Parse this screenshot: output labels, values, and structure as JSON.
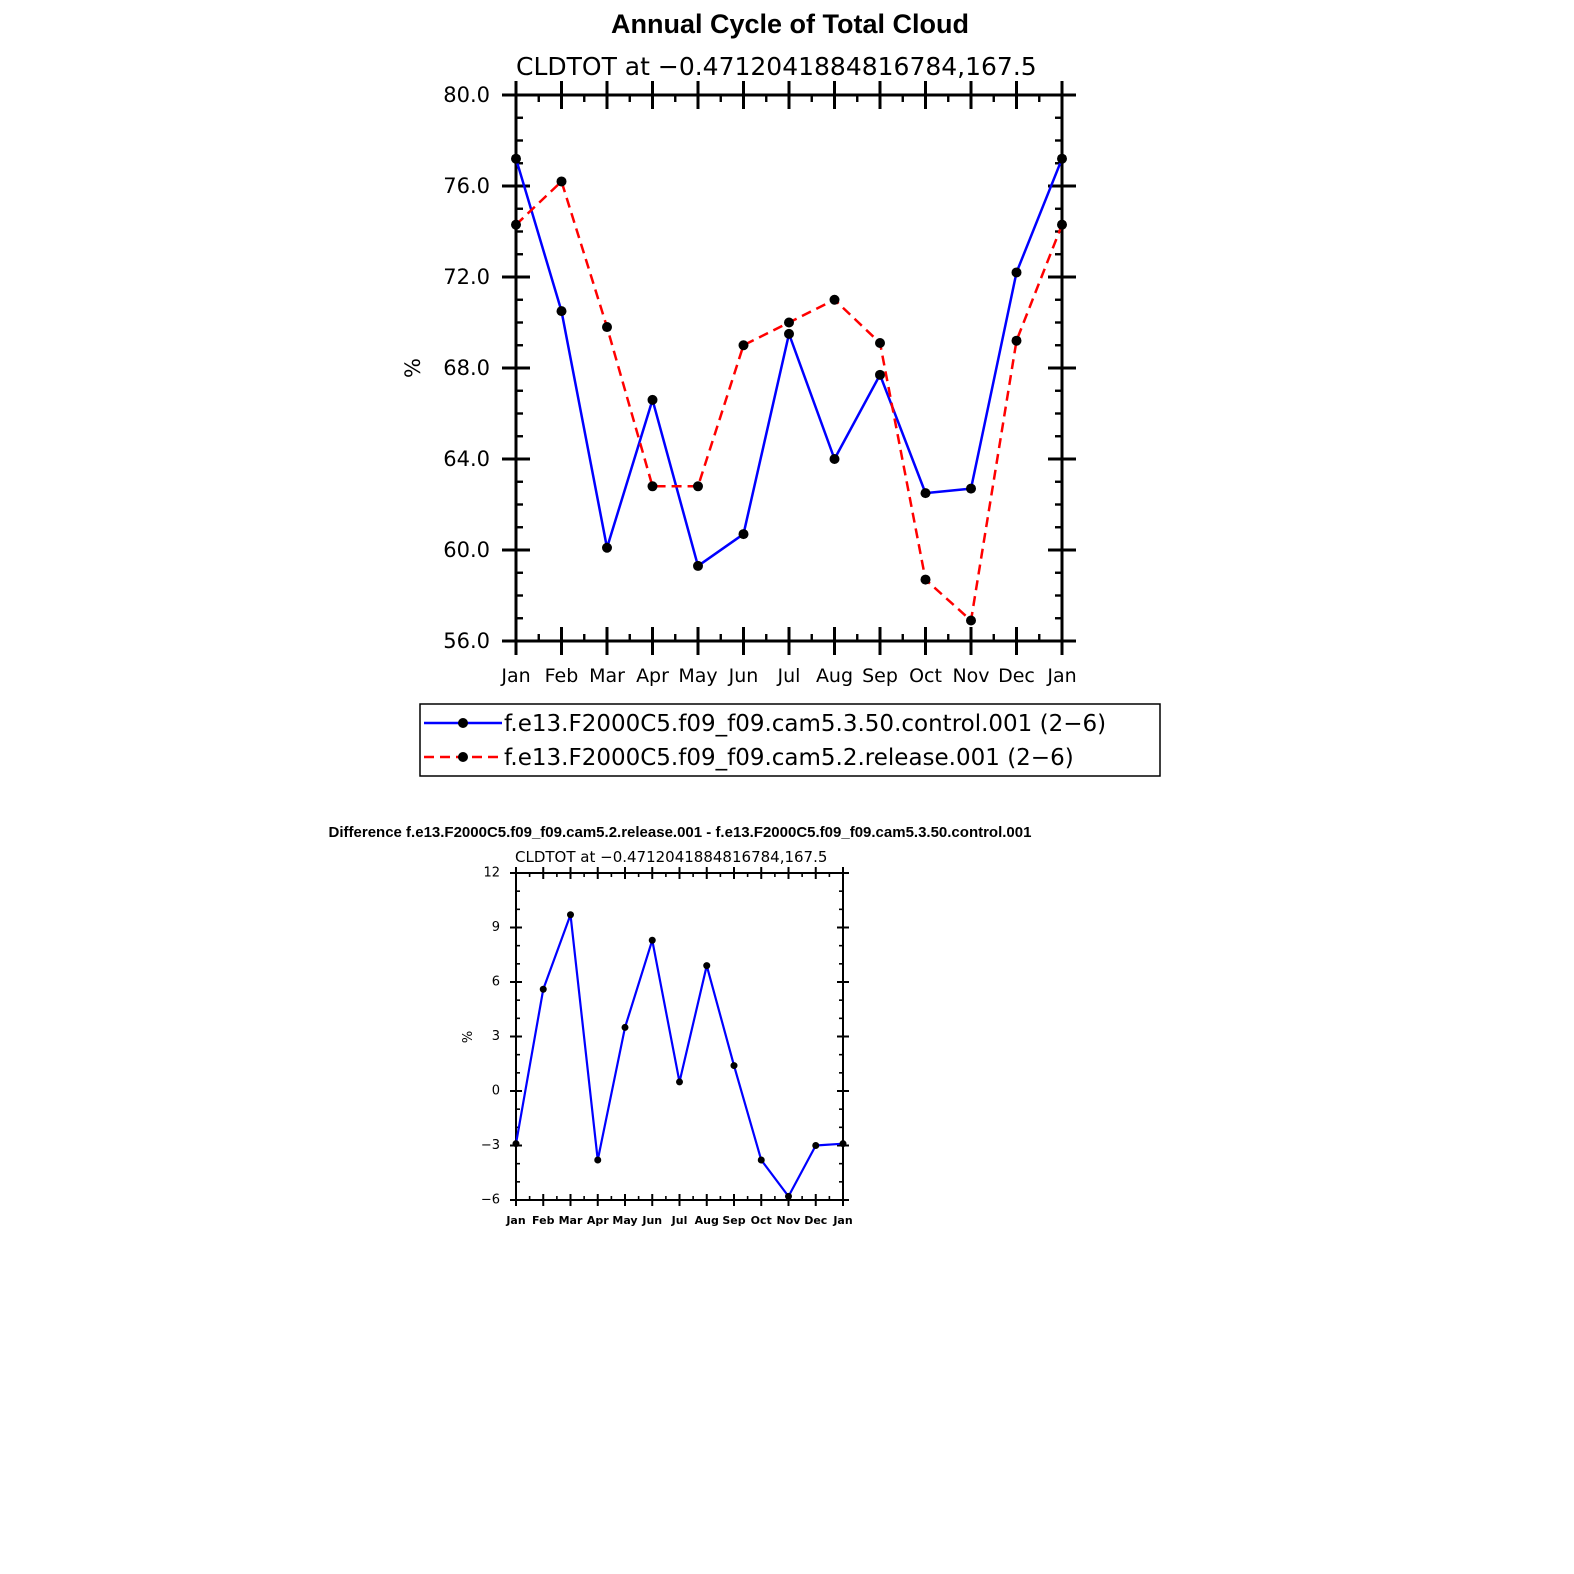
{
  "chart_data": [
    {
      "type": "line",
      "title": "Annual Cycle of Total Cloud",
      "subtitle": "CLDTOT at −0.4712041884816784,167.5",
      "ylabel": "%",
      "xlabel": "",
      "ylim": [
        56,
        80
      ],
      "yticks": [
        "80.0",
        "76.0",
        "72.0",
        "68.0",
        "64.0",
        "60.0",
        "56.0"
      ],
      "categories": [
        "Jan",
        "Feb",
        "Mar",
        "Apr",
        "May",
        "Jun",
        "Jul",
        "Aug",
        "Sep",
        "Oct",
        "Nov",
        "Dec",
        "Jan"
      ],
      "grid": false,
      "legend_position": "bottom",
      "series": [
        {
          "name": "f.e13.F2000C5.f09_f09.cam5.3.50.control.001 (2−6)",
          "color": "#0000ff",
          "style": "solid",
          "values": [
            77.2,
            70.5,
            60.1,
            66.6,
            59.3,
            60.7,
            69.5,
            64.0,
            67.7,
            62.5,
            62.7,
            72.2,
            77.2
          ]
        },
        {
          "name": "f.e13.F2000C5.f09_f09.cam5.2.release.001 (2−6)",
          "color": "#ff0000",
          "style": "dashed",
          "values": [
            74.3,
            76.2,
            69.8,
            62.8,
            62.8,
            69.0,
            70.0,
            71.0,
            69.1,
            58.7,
            56.9,
            69.2,
            74.3
          ]
        }
      ]
    },
    {
      "type": "line",
      "title": "Difference f.e13.F2000C5.f09_f09.cam5.2.release.001 - f.e13.F2000C5.f09_f09.cam5.3.50.control.001",
      "subtitle": "CLDTOT at −0.4712041884816784,167.5",
      "ylabel": "%",
      "xlabel": "",
      "ylim": [
        -6,
        12
      ],
      "yticks": [
        "12",
        "9",
        "6",
        "3",
        "0",
        "−3",
        "−6"
      ],
      "categories": [
        "Jan",
        "Feb",
        "Mar",
        "Apr",
        "May",
        "Jun",
        "Jul",
        "Aug",
        "Sep",
        "Oct",
        "Nov",
        "Dec",
        "Jan"
      ],
      "grid": false,
      "series": [
        {
          "color": "#0000ff",
          "style": "solid",
          "values": [
            -2.9,
            5.6,
            9.7,
            -3.8,
            3.5,
            8.3,
            0.5,
            6.9,
            1.4,
            -3.8,
            -5.8,
            -3.0,
            -2.9
          ]
        }
      ]
    }
  ]
}
